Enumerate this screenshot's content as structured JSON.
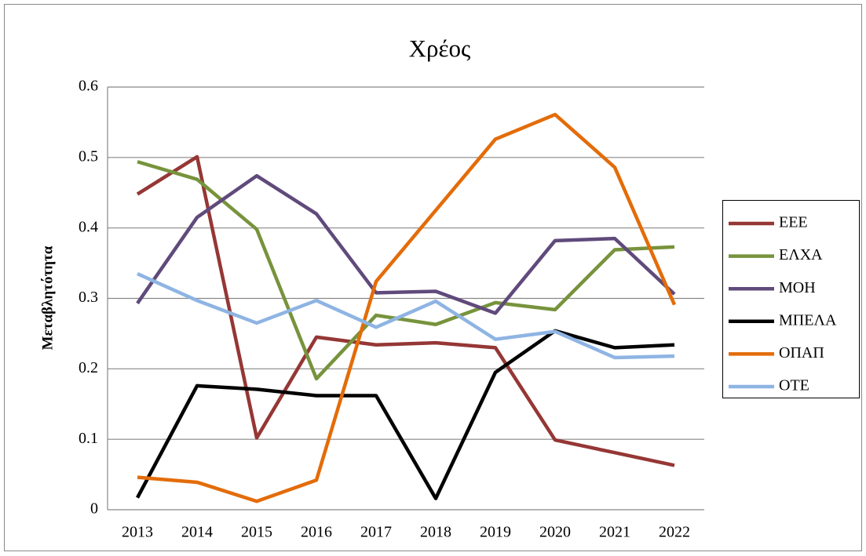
{
  "chart_data": {
    "type": "line",
    "title": "Χρέος",
    "y_label": "Μεταβλητότητα",
    "categories": [
      "2013",
      "2014",
      "2015",
      "2016",
      "2017",
      "2018",
      "2019",
      "2020",
      "2021",
      "2022"
    ],
    "series": [
      {
        "name": "ΕΕΕ",
        "color": "#953735",
        "values": [
          0.448,
          0.501,
          0.102,
          0.245,
          0.234,
          0.237,
          0.23,
          0.099,
          0.081,
          0.063
        ]
      },
      {
        "name": "ΕΛΧΑ",
        "color": "#77933c",
        "values": [
          0.494,
          0.469,
          0.398,
          0.186,
          0.276,
          0.263,
          0.294,
          0.284,
          0.369,
          0.373
        ]
      },
      {
        "name": "ΜΟΗ",
        "color": "#604a7b",
        "values": [
          0.293,
          0.415,
          0.474,
          0.42,
          0.308,
          0.31,
          0.279,
          0.382,
          0.385,
          0.306
        ]
      },
      {
        "name": "ΜΠΕΛΑ",
        "color": "#000000",
        "values": [
          0.017,
          0.176,
          0.171,
          0.162,
          0.162,
          0.016,
          0.195,
          0.254,
          0.23,
          0.234
        ]
      },
      {
        "name": "ΟΠΑΠ",
        "color": "#e36c09",
        "values": [
          0.046,
          0.039,
          0.012,
          0.042,
          0.324,
          0.425,
          0.526,
          0.561,
          0.486,
          0.291
        ]
      },
      {
        "name": "ΟΤΕ",
        "color": "#8eb4e3",
        "values": [
          0.335,
          0.297,
          0.265,
          0.297,
          0.259,
          0.296,
          0.242,
          0.253,
          0.216,
          0.218
        ]
      }
    ],
    "ylim": [
      0,
      0.6
    ],
    "yticks": [
      0,
      0.1,
      0.2,
      0.3,
      0.4,
      0.5,
      0.6
    ],
    "grid": true,
    "legend": "right"
  }
}
